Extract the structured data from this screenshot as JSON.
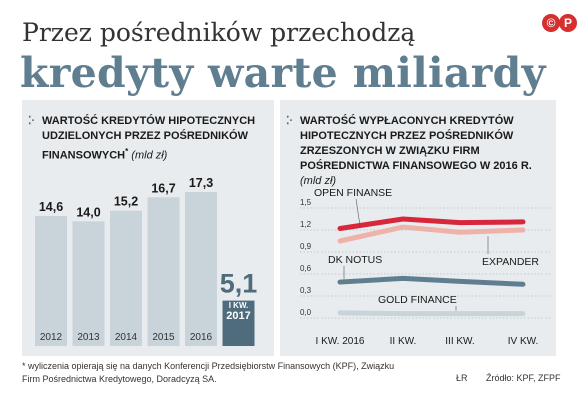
{
  "logo": "©P",
  "title": {
    "line1": "Przez pośredników przechodzą",
    "line2": "kredyty warte miliardy"
  },
  "left_panel": {
    "heading": "Wartość kredytów hipotecznych udzielonych przez pośredników finansowych",
    "footnote_mark": "*",
    "unit": "(mld zł)"
  },
  "right_panel": {
    "heading": "Wartość wypłaconych kredytów hipotecznych przez pośredników zrzeszonych w Związku Firm Pośrednictwa Finansowego w 2016 r.",
    "unit": "(mld zł)"
  },
  "footnote": "* wyliczenia opierają się na danych Konferencji Przedsiębiorstw Finansowych (KPF), Związku Firm Pośrednictwa Kredytowego, Doradcyzą SA.",
  "author": "ŁR",
  "source": "Źródło: KPF, ZFPF",
  "colors": {
    "accent": "#5f7e90",
    "panel_bg": "#e8ecef",
    "bar": "#c9d3da",
    "bar_highlight": "#4f6c7d",
    "open_finanse": "#d8263b",
    "expander": "#efb2a8",
    "dk_notus": "#5f7e90",
    "gold_finance": "#c9d3da"
  },
  "chart_data": [
    {
      "type": "bar",
      "categories": [
        "2012",
        "2013",
        "2014",
        "2015",
        "2016",
        "I KW. 2017"
      ],
      "values": [
        14.6,
        14.0,
        15.2,
        16.7,
        17.3,
        5.1
      ],
      "value_labels": [
        "14,6",
        "14,0",
        "15,2",
        "16,7",
        "17,3",
        "5,1"
      ],
      "category_labels": [
        [
          "2012"
        ],
        [
          "2013"
        ],
        [
          "2014"
        ],
        [
          "2015"
        ],
        [
          "2016"
        ],
        [
          "I KW.",
          "2017"
        ]
      ],
      "highlight_index": 5,
      "ylim": [
        0,
        17.3
      ]
    },
    {
      "type": "line",
      "categories": [
        "I KW. 2016",
        "II KW.",
        "III KW.",
        "IV KW."
      ],
      "y_ticks": [
        0,
        0.3,
        0.6,
        0.9,
        1.2,
        1.5
      ],
      "y_tick_labels": [
        "0,0",
        "0,3",
        "0,6",
        "0,9",
        "1,2",
        "1,5"
      ],
      "ylim": [
        0,
        1.5
      ],
      "grid": true,
      "series": [
        {
          "name": "OPEN FINANSE",
          "values": [
            1.22,
            1.35,
            1.3,
            1.31
          ],
          "color": "#d8263b"
        },
        {
          "name": "EXPANDER",
          "values": [
            1.05,
            1.24,
            1.17,
            1.2
          ],
          "color": "#efb2a8"
        },
        {
          "name": "DK NOTUS",
          "values": [
            0.49,
            0.54,
            0.5,
            0.46
          ],
          "color": "#5f7e90"
        },
        {
          "name": "GOLD FINANCE",
          "values": [
            0.07,
            0.06,
            0.06,
            0.06
          ],
          "color": "#c9d3da"
        }
      ]
    }
  ]
}
